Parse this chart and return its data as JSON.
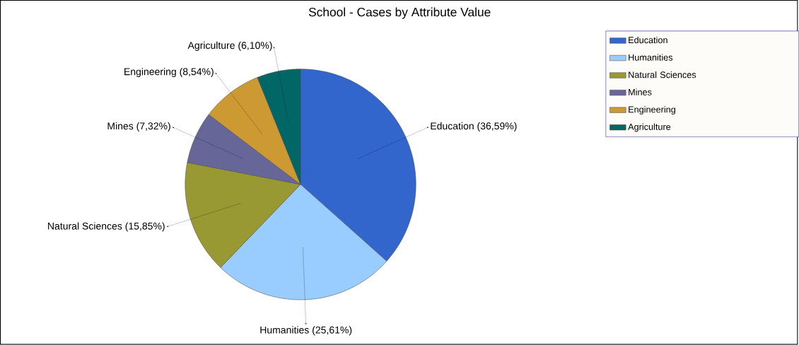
{
  "chart_data": {
    "type": "pie",
    "title": "School - Cases by Attribute Value",
    "categories": [
      "Education",
      "Humanities",
      "Natural Sciences",
      "Mines",
      "Engineering",
      "Agriculture"
    ],
    "values": [
      36.59,
      25.61,
      15.85,
      7.32,
      8.54,
      6.1
    ],
    "value_labels": [
      "Education (36,59%)",
      "Humanities (25,61%)",
      "Natural Sciences (15,85%)",
      "Mines (7,32%)",
      "Engineering (8,54%)",
      "Agriculture (6,10%)"
    ],
    "colors": [
      "#3366cc",
      "#99ccff",
      "#999933",
      "#666699",
      "#cc9933",
      "#006666"
    ],
    "legend": "right"
  }
}
